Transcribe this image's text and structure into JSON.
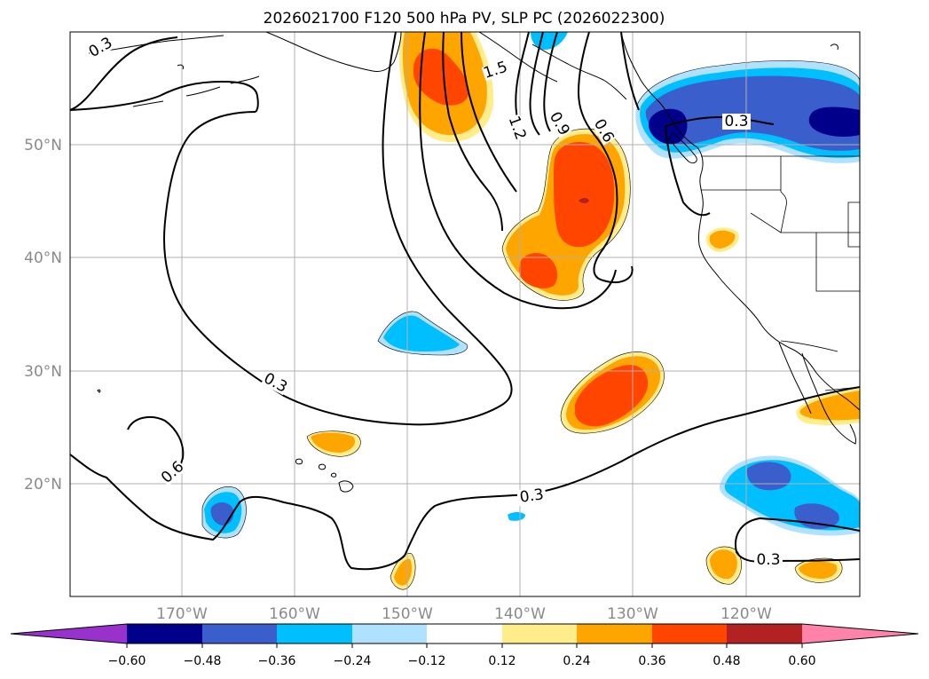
{
  "title": "2026021700 F120 500 hPa PV, SLP PC (2026022300)",
  "map": {
    "lat_labels": [
      "50°N",
      "40°N",
      "30°N",
      "20°N"
    ],
    "lon_labels": [
      "170°W",
      "160°W",
      "150°W",
      "140°W",
      "130°W",
      "120°W"
    ],
    "contour_labels": {
      "c03_nw": "0.3",
      "c15": "1.5",
      "c12": "1.2",
      "c09": "0.9",
      "c06_n": "0.6",
      "c03_ne": "0.3",
      "c03_w": "0.3",
      "c06_sw": "0.6",
      "c03_s": "0.3",
      "c03_se": "0.3"
    }
  },
  "colorbar": {
    "ticks": [
      "−0.60",
      "−0.48",
      "−0.36",
      "−0.24",
      "−0.12",
      "0.12",
      "0.24",
      "0.36",
      "0.48",
      "0.60"
    ],
    "colors": [
      "#9932cc",
      "#00008b",
      "#3a5fcd",
      "#00bfff",
      "#b0e2ff",
      "#ffffff",
      "#ffec8b",
      "#ffa500",
      "#ff4500",
      "#b22222",
      "#ff82ab"
    ]
  }
}
